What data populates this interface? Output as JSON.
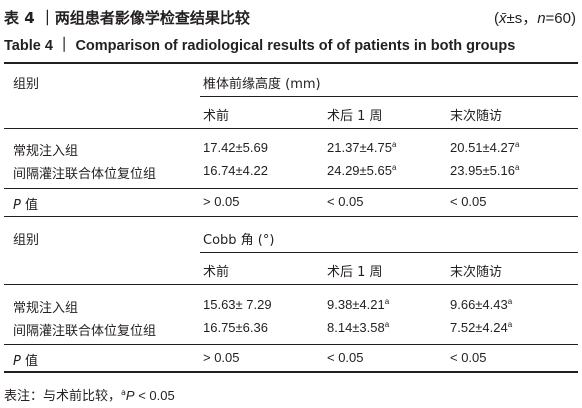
{
  "title": {
    "cn": "表 4 ｜两组患者影像学检查结果比较",
    "stat_x": "x̄",
    "stat_rest": "±s，",
    "stat_n": "n",
    "stat_n_val": "=60)",
    "stat_open": "(",
    "en": "Table 4 ｜ Comparison of radiological results of of patients in both groups"
  },
  "sections": [
    {
      "group_header": "组别",
      "measure": "椎体前缘高度 (mm)",
      "cols": [
        "术前",
        "术后 1 周",
        "末次随访"
      ],
      "rows": [
        {
          "label": "常规注入组",
          "values": [
            "17.42±5.69",
            "21.37±4.75",
            "20.51±4.27"
          ],
          "sups": [
            "",
            "a",
            "a"
          ]
        },
        {
          "label": "间隔灌注联合体位复位组",
          "values": [
            "16.74±4.22",
            "24.29±5.65",
            "23.95±5.16"
          ],
          "sups": [
            "",
            "a",
            "a"
          ]
        }
      ],
      "p_label_italic": "P",
      "p_label_rest": " 值",
      "p_values": [
        "> 0.05",
        "< 0.05",
        "< 0.05"
      ]
    },
    {
      "group_header": "组别",
      "measure": "Cobb 角 (°)",
      "cols": [
        "术前",
        "术后 1 周",
        "末次随访"
      ],
      "rows": [
        {
          "label": "常规注入组",
          "values": [
            "15.63± 7.29",
            "9.38±4.21",
            "9.66±4.43"
          ],
          "sups": [
            "",
            "a",
            "a"
          ]
        },
        {
          "label": "间隔灌注联合体位复位组",
          "values": [
            "16.75±6.36",
            "8.14±3.58",
            "7.52±4.24"
          ],
          "sups": [
            "",
            "a",
            "a"
          ]
        }
      ],
      "p_label_italic": "P",
      "p_label_rest": " 值",
      "p_values": [
        "> 0.05",
        "< 0.05",
        "< 0.05"
      ]
    }
  ],
  "note": {
    "prefix": "表注：与术前比较，",
    "sup": "a",
    "italic": "P",
    "rest": " < 0.05"
  }
}
